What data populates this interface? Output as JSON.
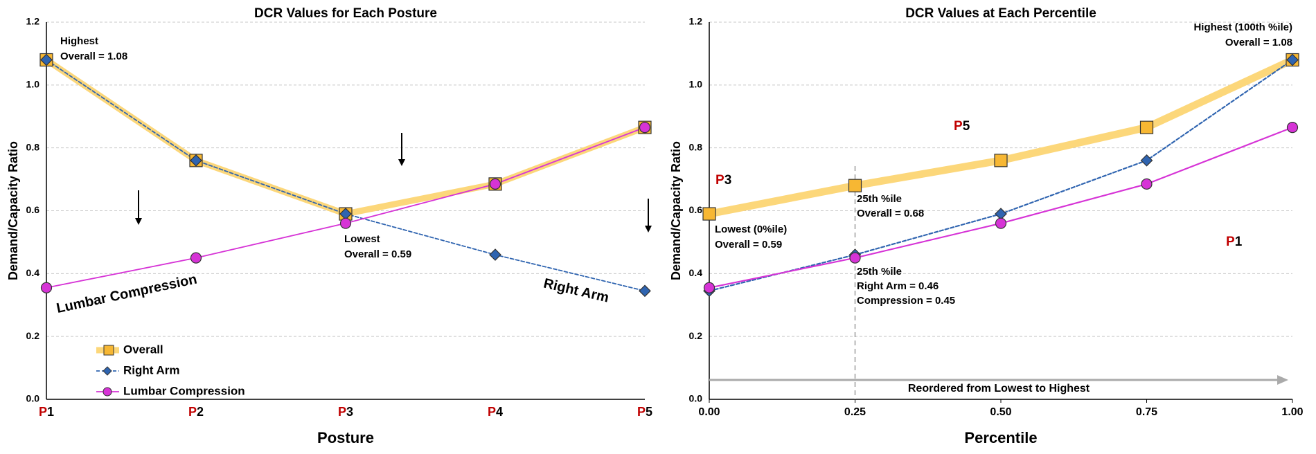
{
  "chart_data": [
    {
      "type": "line",
      "title": "DCR Values for Each Posture",
      "categories": [
        "P1",
        "P2",
        "P3",
        "P4",
        "P5"
      ],
      "xlabel": "Posture",
      "ylabel": "Demand/Capacity Ratio",
      "ylim": [
        0,
        1.2
      ],
      "yticks": [
        {
          "value": 0,
          "label": "0.0"
        },
        0.2,
        0.4,
        0.6,
        0.8,
        {
          "value": 1,
          "label": "1.0"
        },
        1.2
      ],
      "grid": true,
      "legend": "lower left",
      "series": [
        {
          "name": "Overall",
          "color": "#f7b733",
          "marker": "square",
          "values": [
            1.08,
            0.76,
            0.59,
            0.685,
            0.865
          ]
        },
        {
          "name": "Right Arm",
          "color": "#2f64b0",
          "marker": "diamond",
          "dashed": true,
          "values": [
            1.08,
            0.76,
            0.59,
            0.46,
            0.345
          ]
        },
        {
          "name": "Lumbar Compression",
          "color": "#d633d6",
          "marker": "circle",
          "values": [
            0.355,
            0.45,
            0.56,
            0.685,
            0.865
          ]
        }
      ],
      "annotations": [
        {
          "text": "Highest",
          "color": "#f39200"
        },
        {
          "text": "Overall = 1.08",
          "color": "#f39200"
        },
        {
          "text": "Lowest",
          "color": "#f39200"
        },
        {
          "text": "Overall = 0.59",
          "color": "#f39200"
        },
        {
          "text": "Lumbar Compression",
          "color": "#d633d6"
        },
        {
          "text": "Right Arm",
          "color": "#2f64b0"
        }
      ]
    },
    {
      "type": "line",
      "title": "DCR Values at Each Percentile",
      "x": [
        0,
        0.25,
        0.5,
        0.75,
        1
      ],
      "xlabel": "Percentile",
      "ylabel": "Demand/Capacity Ratio",
      "xlim": [
        0,
        1
      ],
      "xticks": [
        {
          "value": 0,
          "label": "0.00"
        },
        0.25,
        {
          "value": 0.5,
          "label": "0.50"
        },
        0.75,
        {
          "value": 1,
          "label": "1.00"
        }
      ],
      "ylim": [
        0,
        1.2
      ],
      "yticks": [
        {
          "value": 0,
          "label": "0.0"
        },
        0.2,
        0.4,
        0.6,
        0.8,
        {
          "value": 1,
          "label": "1.0"
        },
        1.2
      ],
      "grid": true,
      "series": [
        {
          "color": "#f7b733",
          "marker": "square",
          "values": [
            0.59,
            0.68,
            0.76,
            0.865,
            1.08
          ]
        },
        {
          "color": "#2f64b0",
          "marker": "diamond",
          "dashed": true,
          "values": [
            0.345,
            0.46,
            0.59,
            0.76,
            1.08
          ]
        },
        {
          "color": "#d633d6",
          "marker": "circle",
          "values": [
            0.355,
            0.45,
            0.56,
            0.685,
            0.865
          ]
        }
      ],
      "annotations": [
        {
          "text": "Highest (100th %ile)",
          "color": "#f39200"
        },
        {
          "text": "Overall = 1.08",
          "color": "#f39200"
        },
        {
          "text": "25th %ile",
          "color": "#f39200"
        },
        {
          "text": "Overall = 0.68",
          "color": "#f39200"
        },
        {
          "text": "Lowest (0%ile)",
          "color": "#f39200"
        },
        {
          "text": "Overall = 0.59",
          "color": "#f39200"
        },
        {
          "text": "25th %ile",
          "color": "#000000"
        },
        {
          "text": "Right Arm = 0.46",
          "color": "#2f64b0"
        },
        {
          "text": "Compression = 0.45",
          "color": "#d633d6"
        },
        {
          "text": "Reordered from Lowest to Highest",
          "color": "#aaaaaa"
        },
        {
          "text": "P3",
          "color": "#000000"
        },
        {
          "text": "P5",
          "color": "#000000"
        },
        {
          "text": "P1",
          "color": "#000000"
        }
      ]
    }
  ]
}
